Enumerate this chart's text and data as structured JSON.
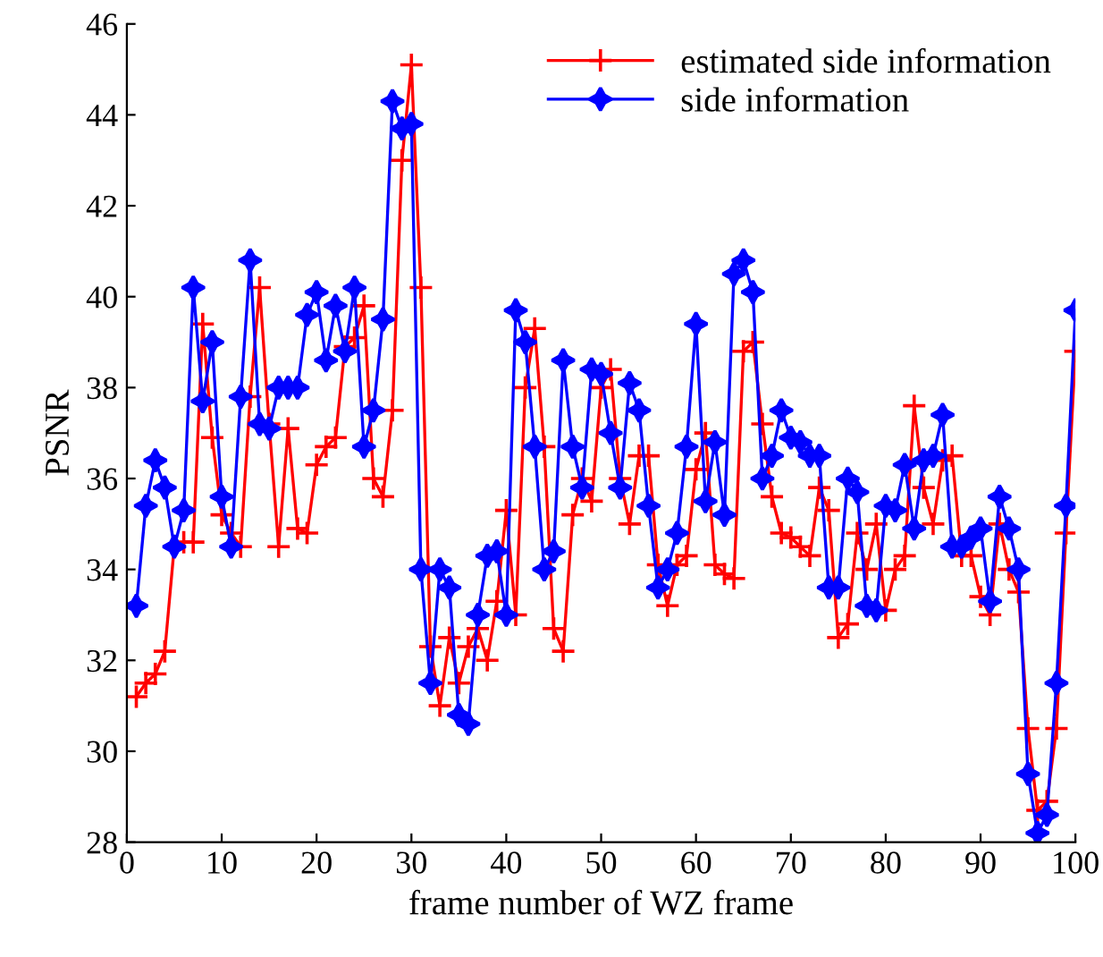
{
  "chart_data": {
    "type": "line",
    "xlabel": "frame number of WZ frame",
    "ylabel": "PSNR",
    "x": [
      1,
      2,
      3,
      4,
      5,
      6,
      7,
      8,
      9,
      10,
      11,
      12,
      13,
      14,
      15,
      16,
      17,
      18,
      19,
      20,
      21,
      22,
      23,
      24,
      25,
      26,
      27,
      28,
      29,
      30,
      31,
      32,
      33,
      34,
      35,
      36,
      37,
      38,
      39,
      40,
      41,
      42,
      43,
      44,
      45,
      46,
      47,
      48,
      49,
      50,
      51,
      52,
      53,
      54,
      55,
      56,
      57,
      58,
      59,
      60,
      61,
      62,
      63,
      64,
      65,
      66,
      67,
      68,
      69,
      70,
      71,
      72,
      73,
      74,
      75,
      76,
      77,
      78,
      79,
      80,
      81,
      82,
      83,
      84,
      85,
      86,
      87,
      88,
      89,
      90,
      91,
      92,
      93,
      94,
      95,
      96,
      97,
      98,
      99,
      100
    ],
    "series": [
      {
        "name": "estimated side information",
        "color": "#ff0000",
        "marker": "cross",
        "values": [
          31.2,
          31.5,
          31.7,
          32.2,
          34.5,
          34.6,
          34.6,
          39.4,
          36.9,
          35.2,
          34.8,
          34.5,
          37.8,
          40.2,
          37.2,
          34.5,
          37.1,
          34.9,
          34.8,
          36.3,
          36.7,
          36.9,
          38.9,
          39.1,
          39.8,
          36.0,
          35.6,
          37.5,
          43.0,
          45.1,
          40.2,
          32.3,
          31.0,
          32.5,
          31.5,
          32.3,
          32.7,
          32.0,
          33.3,
          35.3,
          33.0,
          38.0,
          39.3,
          36.7,
          32.7,
          32.2,
          35.2,
          36.0,
          35.5,
          38.0,
          38.4,
          36.0,
          35.0,
          36.5,
          36.5,
          34.1,
          33.2,
          34.1,
          34.3,
          36.2,
          37.0,
          34.1,
          33.9,
          33.8,
          38.8,
          39.0,
          37.2,
          35.6,
          34.8,
          34.7,
          34.5,
          34.3,
          35.8,
          35.3,
          32.5,
          32.8,
          34.8,
          34.0,
          35.0,
          33.1,
          34.0,
          34.3,
          37.6,
          35.8,
          35.0,
          36.4,
          36.5,
          34.3,
          34.3,
          33.4,
          33.0,
          35.0,
          34.0,
          33.5,
          30.5,
          28.7,
          28.9,
          30.5,
          34.8,
          38.8
        ]
      },
      {
        "name": "side information",
        "color": "#0000ff",
        "marker": "star",
        "values": [
          33.2,
          35.4,
          36.4,
          35.8,
          34.5,
          35.3,
          40.2,
          37.7,
          39.0,
          35.6,
          34.5,
          37.8,
          40.8,
          37.2,
          37.1,
          38.0,
          38.0,
          38.0,
          39.6,
          40.1,
          38.6,
          39.8,
          38.8,
          40.2,
          36.7,
          37.5,
          39.5,
          44.3,
          43.7,
          43.8,
          34.0,
          31.5,
          34.0,
          33.6,
          30.8,
          30.6,
          33.0,
          34.3,
          34.4,
          33.0,
          39.7,
          39.0,
          36.7,
          34.0,
          34.4,
          38.6,
          36.7,
          35.8,
          38.4,
          38.3,
          37.0,
          35.8,
          38.1,
          37.5,
          35.4,
          33.6,
          34.0,
          34.8,
          36.7,
          39.4,
          35.5,
          36.8,
          35.2,
          40.5,
          40.8,
          40.1,
          36.0,
          36.5,
          37.5,
          36.9,
          36.8,
          36.5,
          36.5,
          33.6,
          33.6,
          36.0,
          35.7,
          33.2,
          33.1,
          35.4,
          35.3,
          36.3,
          34.9,
          36.4,
          36.5,
          37.4,
          34.5,
          34.5,
          34.7,
          34.9,
          33.3,
          35.6,
          34.9,
          34.0,
          29.5,
          28.2,
          28.6,
          31.5,
          35.4,
          39.7
        ]
      }
    ],
    "xlim": [
      0,
      100
    ],
    "xticks": [
      0,
      10,
      20,
      30,
      40,
      50,
      60,
      70,
      80,
      90,
      100
    ],
    "ylim": [
      28,
      46
    ],
    "yticks": [
      28,
      30,
      32,
      34,
      36,
      38,
      40,
      42,
      44,
      46
    ],
    "grid": false,
    "legend": "top right",
    "line_style": "solid"
  }
}
